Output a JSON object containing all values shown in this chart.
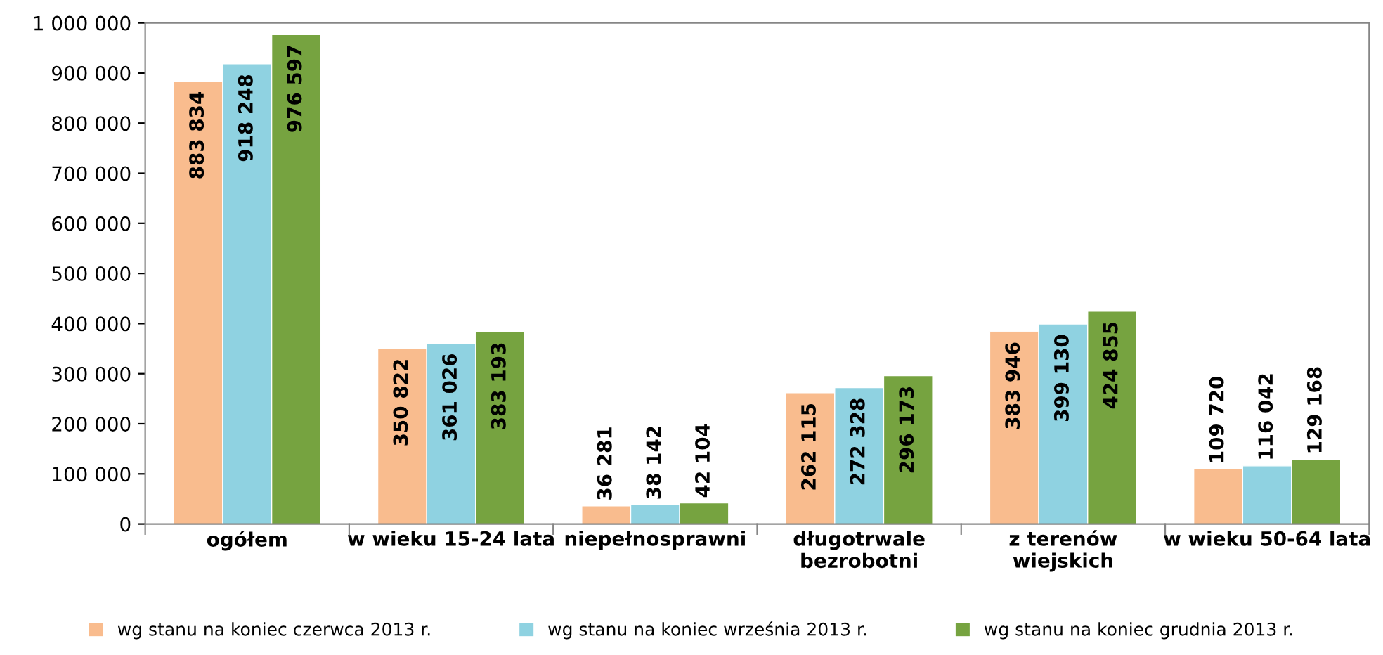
{
  "chart_data": {
    "type": "bar",
    "categories": [
      "ogółem",
      "w wieku 15-24 lata",
      "niepełnosprawni",
      "długotrwale\nbezrobotni",
      "z terenów\nwiejskich",
      "w wieku 50-64 lata"
    ],
    "series": [
      {
        "name": "wg stanu na koniec czerwca 2013 r.",
        "color": "#f9bc8e",
        "values": [
          883834,
          350822,
          36281,
          262115,
          383946,
          109720
        ],
        "value_labels": [
          "883 834",
          "350 822",
          "36 281",
          "262 115",
          "383 946",
          "109 720"
        ]
      },
      {
        "name": "wg stanu na koniec września 2013 r.",
        "color": "#8fd2e1",
        "values": [
          918248,
          361026,
          38142,
          272328,
          399130,
          116042
        ],
        "value_labels": [
          "918 248",
          "361 026",
          "38 142",
          "272 328",
          "399 130",
          "116 042"
        ]
      },
      {
        "name": "wg stanu na koniec grudnia 2013 r.",
        "color": "#76a340",
        "values": [
          976597,
          383193,
          42104,
          296173,
          424855,
          129168
        ],
        "value_labels": [
          "976 597",
          "383 193",
          "42 104",
          "296 173",
          "424 855",
          "129 168"
        ]
      }
    ],
    "ylim": [
      0,
      1000000
    ],
    "yticks": [
      0,
      {
        "value": 100000,
        "label": "100 000"
      },
      {
        "value": 200000,
        "label": "200 000"
      },
      {
        "value": 300000,
        "label": "300 000"
      },
      {
        "value": 400000,
        "label": "400 000"
      },
      {
        "value": 500000,
        "label": "500 000"
      },
      {
        "value": 600000,
        "label": "600 000"
      },
      {
        "value": 700000,
        "label": "700 000"
      },
      {
        "value": 800000,
        "label": "800 000"
      },
      {
        "value": 900000,
        "label": "900 000"
      },
      {
        "value": 1000000,
        "label": "1 000 000"
      }
    ],
    "grid": false,
    "legend": "bottom"
  }
}
